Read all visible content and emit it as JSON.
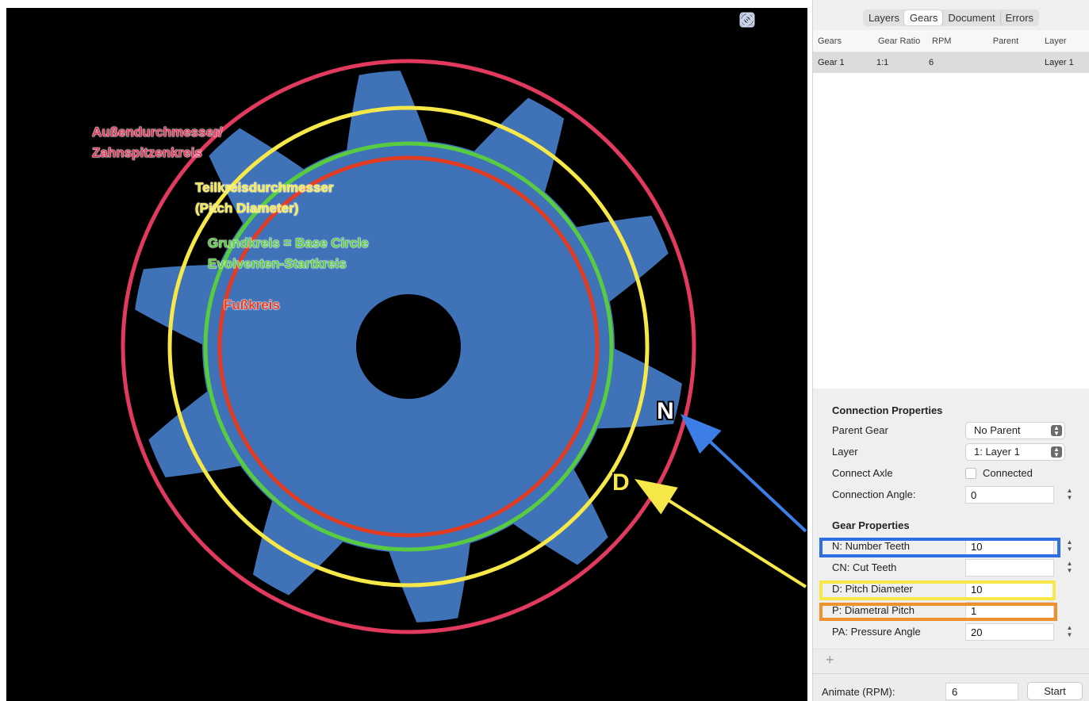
{
  "canvas": {
    "tools": [
      {
        "icon": "concentric-circle-icon"
      },
      {
        "icon": "link-icon"
      },
      {
        "icon": "square-circle-icon"
      }
    ],
    "annotations": {
      "outer": "Außendurchmesser/\nZahnspitzenkreis",
      "pitch": "Teilkreisdurchmesser\n(Pitch Diameter)",
      "base": "Grundkreis = Base Circle\nEvolventen-Startkreis",
      "root": "Fußkreis",
      "n_letter": "N",
      "d_letter": "D"
    },
    "colors": {
      "gear": "#3f72b7",
      "outer_circle": "#e23a5e",
      "pitch_circle": "#f5e848",
      "base_circle": "#58cc41",
      "root_circle": "#e23c23",
      "n_arrow": "#3d7de6",
      "d_arrow": "#f5e848",
      "n_highlight": "#2f6fe4",
      "d_highlight": "#f5e848",
      "p_highlight": "#ef922e"
    }
  },
  "sidebar": {
    "tabs": [
      "Layers",
      "Gears",
      "Document",
      "Errors"
    ],
    "active_tab": "Gears",
    "table": {
      "headers": [
        "Gears",
        "Gear Ratio",
        "RPM",
        "Parent",
        "Layer"
      ],
      "rows": [
        {
          "gear": "Gear 1",
          "ratio": "1:1",
          "rpm": "6",
          "parent": "",
          "layer": "Layer 1"
        }
      ]
    },
    "connection": {
      "title": "Connection Properties",
      "parent_gear_label": "Parent Gear",
      "parent_gear_value": "No Parent",
      "layer_label": "Layer",
      "layer_value": "1: Layer 1",
      "connect_axle_label": "Connect Axle",
      "connect_axle_checkbox": "Connected",
      "connection_angle_label": "Connection Angle:",
      "connection_angle_value": "0"
    },
    "gear_props": {
      "title": "Gear Properties",
      "n_label": "N: Number Teeth",
      "n_value": "10",
      "cn_label": "CN: Cut Teeth",
      "cn_value": "",
      "d_label": "D: Pitch Diameter",
      "d_value": "10",
      "p_label": "P: Diametral Pitch",
      "p_value": "1",
      "pa_label": "PA: Pressure Angle",
      "pa_value": "20"
    },
    "add_symbol": "+",
    "animate_label": "Animate (RPM):",
    "animate_value": "6",
    "start_label": "Start"
  }
}
